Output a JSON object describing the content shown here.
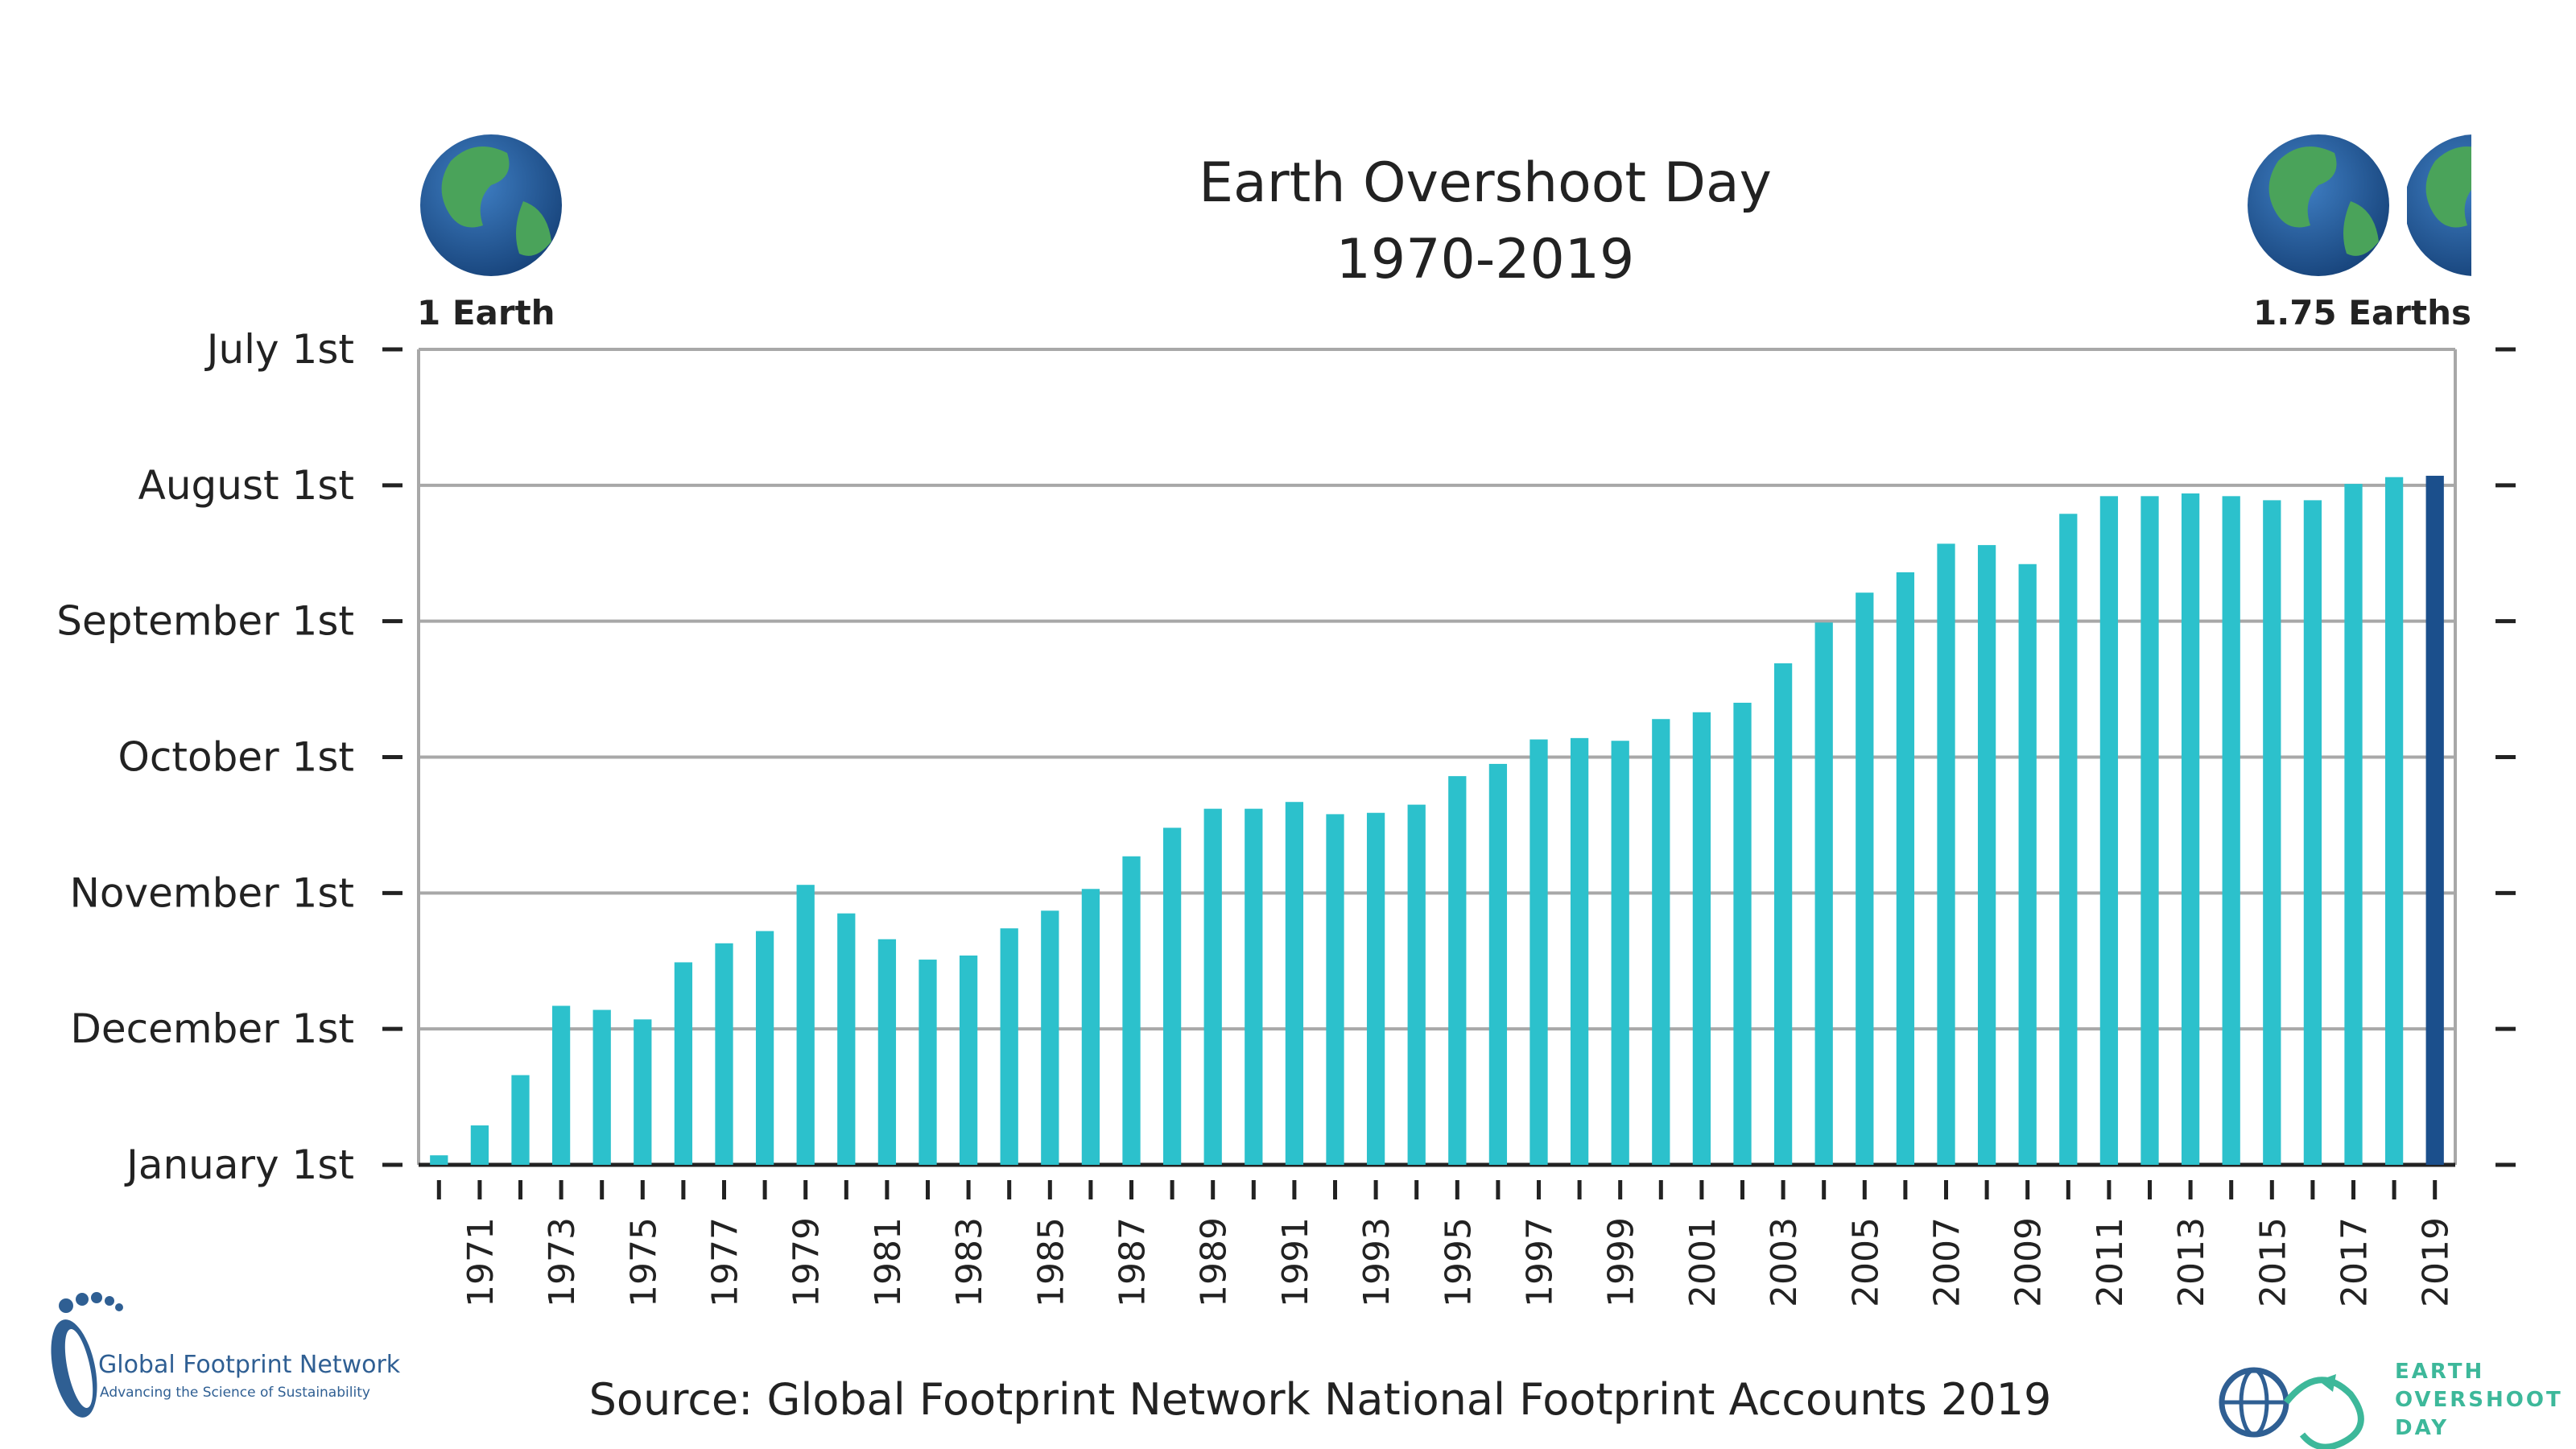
{
  "chart_data": {
    "type": "bar",
    "title": "Earth Overshoot Day",
    "subtitle": "1970-2019",
    "xlabel": "",
    "ylabel": "",
    "x": [
      1970,
      1971,
      1972,
      1973,
      1974,
      1975,
      1976,
      1977,
      1978,
      1979,
      1980,
      1981,
      1982,
      1983,
      1984,
      1985,
      1986,
      1987,
      1988,
      1989,
      1990,
      1991,
      1992,
      1993,
      1994,
      1995,
      1996,
      1997,
      1998,
      1999,
      2000,
      2001,
      2002,
      2003,
      2004,
      2005,
      2006,
      2007,
      2008,
      2009,
      2010,
      2011,
      2012,
      2013,
      2014,
      2015,
      2016,
      2017,
      2018,
      2019
    ],
    "x_tick_labels": [
      "1971",
      "1973",
      "1975",
      "1977",
      "1979",
      "1981",
      "1983",
      "1985",
      "1987",
      "1989",
      "1991",
      "1993",
      "1995",
      "1997",
      "1999",
      "2001",
      "2003",
      "2005",
      "2007",
      "2009",
      "2011",
      "2013",
      "2015",
      "2017",
      "2019"
    ],
    "y_tick_labels": [
      "January 1st",
      "December 1st",
      "November 1st",
      "October 1st",
      "September 1st",
      "August 1st",
      "July 1st"
    ],
    "y_axis_note": "values are months before January 1st (0 = January 1st, 6 = July 1st)",
    "ylim": [
      0,
      6
    ],
    "values": [
      0.07,
      0.29,
      0.66,
      1.17,
      1.14,
      1.07,
      1.49,
      1.63,
      1.72,
      2.06,
      1.85,
      1.66,
      1.51,
      1.54,
      1.74,
      1.87,
      2.03,
      2.27,
      2.48,
      2.62,
      2.62,
      2.67,
      2.58,
      2.59,
      2.65,
      2.86,
      2.95,
      3.13,
      3.14,
      3.12,
      3.28,
      3.33,
      3.4,
      3.69,
      3.99,
      4.21,
      4.36,
      4.57,
      4.56,
      4.42,
      4.79,
      4.92,
      4.92,
      4.94,
      4.92,
      4.89,
      4.89,
      5.01,
      5.06,
      5.07
    ],
    "highlight_index": 49,
    "colors": {
      "bar": "#2cc1cc",
      "highlight": "#1b4f8c",
      "grid": "#a8a8a8",
      "frame": "#a8a8a8"
    },
    "grid": true,
    "annotations": {
      "left": "1 Earth",
      "right": "1.75 Earths"
    }
  },
  "footer": {
    "source": "Source: Global Footprint Network National Footprint Accounts 2019",
    "gfn_logo_name": "Global Footprint Network",
    "gfn_logo_tagline": "Advancing the Science of Sustainability",
    "eod_logo_lines": [
      "EARTH",
      "OVERSHOOT",
      "DAY"
    ]
  }
}
